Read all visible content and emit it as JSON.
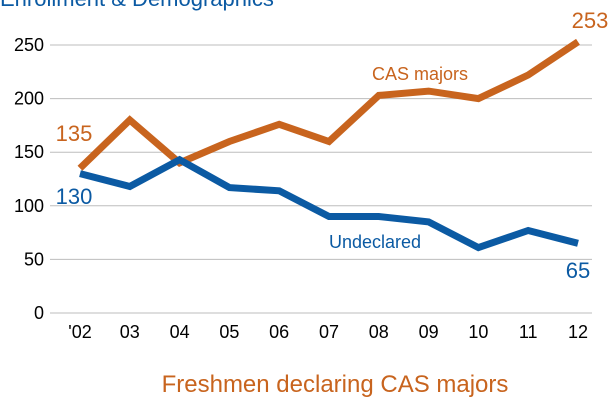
{
  "chart_data": {
    "type": "line",
    "title": "Enrollment & Demographics",
    "x_label": "Freshmen declaring CAS majors",
    "categories": [
      "'02",
      "03",
      "04",
      "05",
      "06",
      "07",
      "08",
      "09",
      "10",
      "11",
      "12"
    ],
    "series": [
      {
        "name": "CAS majors",
        "color": "#c8641e",
        "values": [
          135,
          180,
          140,
          160,
          176,
          160,
          203,
          207,
          200,
          222,
          253
        ],
        "value_labels": [
          "135",
          null,
          null,
          null,
          null,
          null,
          null,
          null,
          null,
          null,
          "253"
        ]
      },
      {
        "name": "Undeclared",
        "color": "#0b5aa3",
        "values": [
          130,
          118,
          143,
          117,
          114,
          90,
          90,
          85,
          61,
          77,
          65
        ],
        "value_labels": [
          "130",
          null,
          null,
          null,
          null,
          null,
          null,
          null,
          null,
          null,
          "65"
        ]
      }
    ],
    "ylim": [
      0,
      250
    ],
    "yticks": [
      0,
      50,
      100,
      150,
      200,
      250
    ],
    "grid": true
  }
}
